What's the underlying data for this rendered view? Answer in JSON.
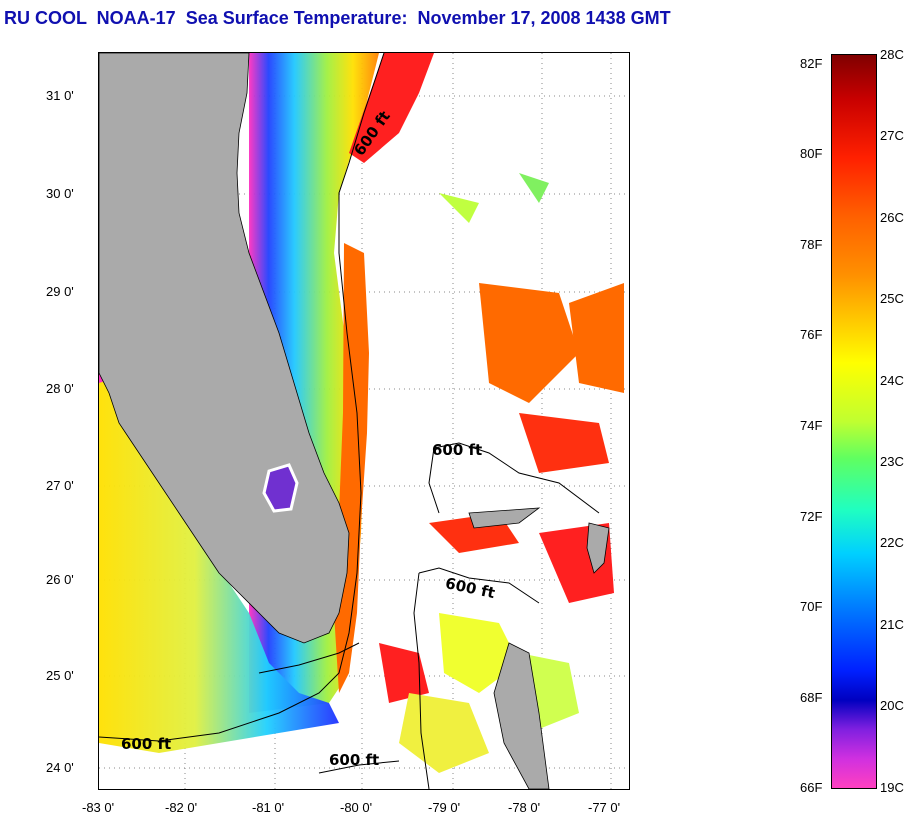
{
  "title": "RU COOL  NOAA-17  Sea Surface Temperature:  November 17, 2008 1438 GMT",
  "map": {
    "lat_labels": [
      "31 0'",
      "30 0'",
      "29 0'",
      "28 0'",
      "27 0'",
      "26 0'",
      "25 0'",
      "24 0'"
    ],
    "lon_labels": [
      "-83 0'",
      "-82 0'",
      "-81 0'",
      "-80 0'",
      "-79 0'",
      "-78 0'",
      "-77 0'"
    ],
    "contour_label": "600 ft",
    "land_color": "#aaaaaa"
  },
  "colorbar": {
    "f_labels": [
      "82F",
      "80F",
      "78F",
      "76F",
      "74F",
      "72F",
      "70F",
      "68F",
      "66F"
    ],
    "c_labels": [
      "28C",
      "27C",
      "26C",
      "25C",
      "24C",
      "23C",
      "22C",
      "21C",
      "20C",
      "19C"
    ]
  }
}
